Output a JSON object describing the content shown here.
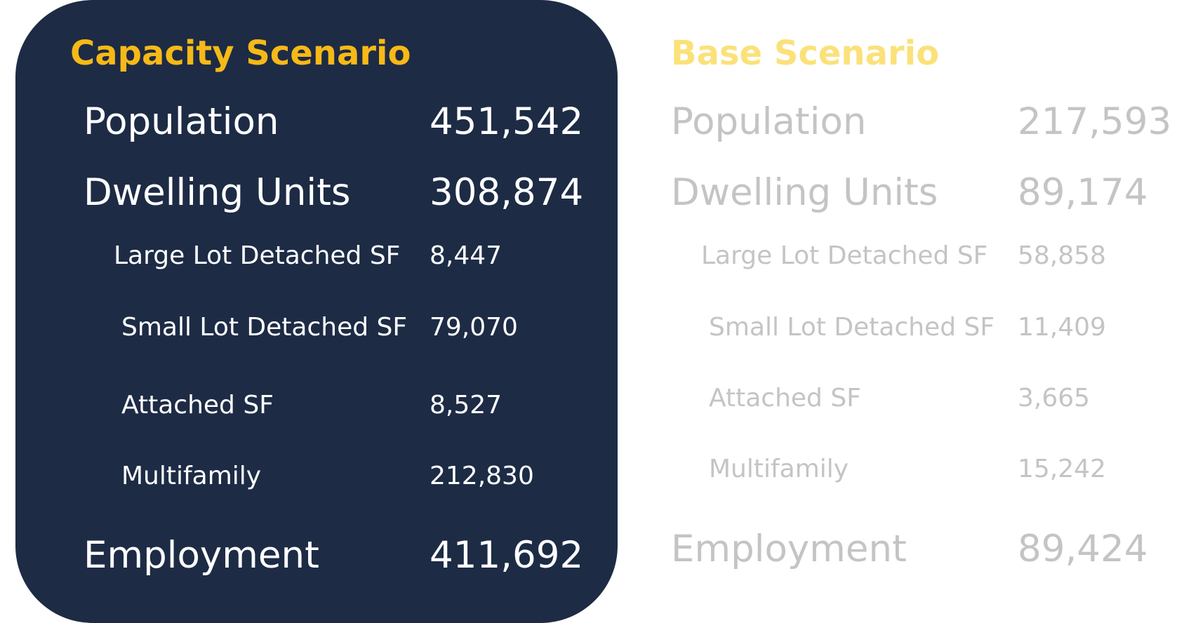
{
  "capacity": {
    "title": "Capacity Scenario",
    "rows": [
      {
        "label": "Population",
        "value": "451,542"
      },
      {
        "label": "Dwelling Units",
        "value": "308,874"
      },
      {
        "label": "Large Lot Detached SF",
        "value": "8,447"
      },
      {
        "label": "Small Lot Detached SF",
        "value": "79,070"
      },
      {
        "label": "Attached SF",
        "value": "8,527"
      },
      {
        "label": "Multifamily",
        "value": "212,830"
      },
      {
        "label": "Employment",
        "value": "411,692"
      }
    ]
  },
  "base": {
    "title": "Base Scenario",
    "rows": [
      {
        "label": "Population",
        "value": "217,593"
      },
      {
        "label": "Dwelling Units",
        "value": "89,174"
      },
      {
        "label": "Large Lot Detached SF",
        "value": "58,858"
      },
      {
        "label": "Small Lot Detached SF",
        "value": "11,409"
      },
      {
        "label": "Attached SF",
        "value": "3,665"
      },
      {
        "label": "Multifamily",
        "value": "15,242"
      },
      {
        "label": "Employment",
        "value": "89,424"
      }
    ]
  },
  "colors": {
    "panel_background": "#1d2b45",
    "capacity_title": "#f6b917",
    "base_title": "#fbe179",
    "base_text": "#c4c4c4"
  }
}
